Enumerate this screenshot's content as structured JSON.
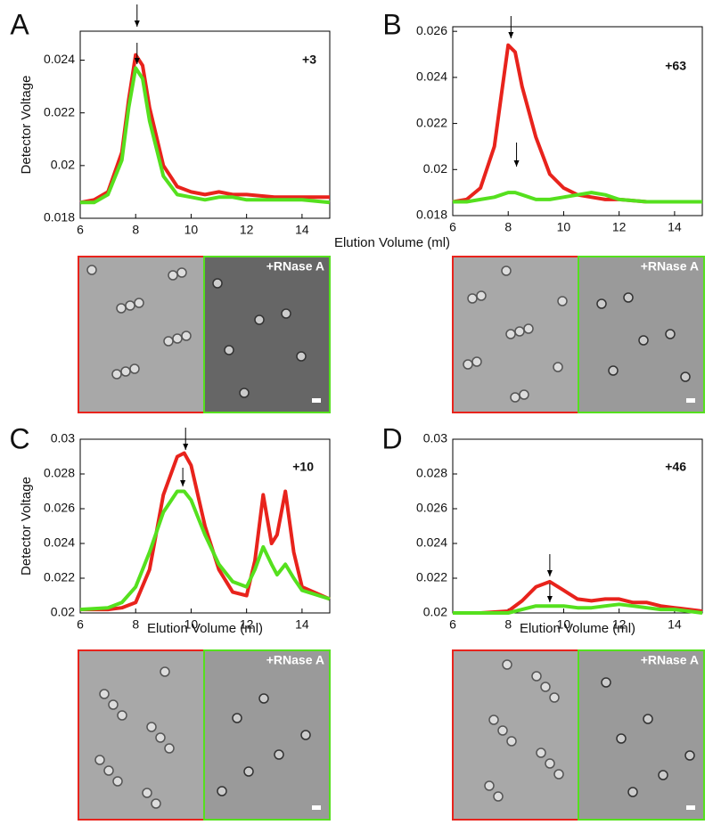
{
  "chart_data": [
    {
      "type": "line",
      "panel": "A",
      "annotation": "+3",
      "ylabel": "Detector Voltage",
      "xlabel": "Elution Volume (ml)",
      "image_label": "+RNase A",
      "xlim": [
        6,
        15
      ],
      "xticks": [
        6,
        8,
        10,
        12,
        14
      ],
      "ylim": [
        0.018,
        0.0251
      ],
      "yticks": [
        0.018,
        0.02,
        0.022,
        0.024
      ],
      "x": [
        6,
        6.5,
        7,
        7.5,
        7.75,
        8,
        8.25,
        8.5,
        9,
        9.5,
        10,
        10.5,
        11,
        11.5,
        12,
        13,
        14,
        15
      ],
      "series": [
        {
          "color": "#e8231c",
          "values": [
            0.0186,
            0.0187,
            0.019,
            0.0205,
            0.0225,
            0.0242,
            0.0238,
            0.0222,
            0.02,
            0.0192,
            0.019,
            0.0189,
            0.019,
            0.0189,
            0.0189,
            0.0188,
            0.0188,
            0.0188
          ]
        },
        {
          "color": "#55e01e",
          "values": [
            0.0186,
            0.0186,
            0.0189,
            0.0202,
            0.0222,
            0.0237,
            0.0233,
            0.0217,
            0.0196,
            0.0189,
            0.0188,
            0.0187,
            0.0188,
            0.0188,
            0.0187,
            0.0187,
            0.0187,
            0.0186
          ]
        }
      ]
    },
    {
      "type": "line",
      "panel": "B",
      "annotation": "+63",
      "image_label": "+RNase A",
      "xlim": [
        6,
        15
      ],
      "xticks": [
        6,
        8,
        10,
        12,
        14
      ],
      "ylim": [
        0.018,
        0.0262
      ],
      "yticks": [
        0.018,
        0.02,
        0.022,
        0.024,
        0.026
      ],
      "x": [
        6,
        6.5,
        7,
        7.5,
        7.75,
        8,
        8.25,
        8.5,
        9,
        9.5,
        10,
        10.5,
        11,
        11.5,
        12,
        13,
        14,
        15
      ],
      "series": [
        {
          "color": "#e8231c",
          "values": [
            0.0186,
            0.0187,
            0.0192,
            0.021,
            0.0232,
            0.0254,
            0.0251,
            0.0236,
            0.0214,
            0.0198,
            0.0192,
            0.0189,
            0.0188,
            0.0187,
            0.0187,
            0.0186,
            0.0186,
            0.0186
          ]
        },
        {
          "color": "#55e01e",
          "values": [
            0.0186,
            0.0186,
            0.0187,
            0.0188,
            0.0189,
            0.019,
            0.019,
            0.0189,
            0.0187,
            0.0187,
            0.0188,
            0.0189,
            0.019,
            0.0189,
            0.0187,
            0.0186,
            0.0186,
            0.0186
          ]
        }
      ]
    },
    {
      "type": "line",
      "panel": "C",
      "annotation": "+10",
      "ylabel": "Detector Voltage",
      "xlabel": "Elution Volume (ml)",
      "image_label": "+RNase A",
      "xlim": [
        6,
        15
      ],
      "xticks": [
        6,
        8,
        10,
        12,
        14
      ],
      "ylim": [
        0.02,
        0.03
      ],
      "yticks": [
        0.02,
        0.022,
        0.024,
        0.026,
        0.028,
        0.03
      ],
      "x": [
        6,
        7,
        7.5,
        8,
        8.5,
        9,
        9.5,
        9.75,
        10,
        10.5,
        11,
        11.5,
        12,
        12.3,
        12.6,
        12.9,
        13.1,
        13.4,
        13.7,
        14,
        15
      ],
      "series": [
        {
          "color": "#e8231c",
          "values": [
            0.0202,
            0.0202,
            0.0203,
            0.0206,
            0.0225,
            0.0268,
            0.029,
            0.0292,
            0.0285,
            0.025,
            0.0225,
            0.0212,
            0.021,
            0.023,
            0.0268,
            0.024,
            0.0245,
            0.027,
            0.0235,
            0.0215,
            0.0208
          ]
        },
        {
          "color": "#55e01e",
          "values": [
            0.0202,
            0.0203,
            0.0206,
            0.0215,
            0.0235,
            0.0258,
            0.027,
            0.027,
            0.0265,
            0.0245,
            0.0228,
            0.0218,
            0.0215,
            0.0225,
            0.0238,
            0.0228,
            0.0222,
            0.0228,
            0.022,
            0.0213,
            0.0208
          ]
        }
      ]
    },
    {
      "type": "line",
      "panel": "D",
      "annotation": "+46",
      "xlabel": "Elution Volume (ml)",
      "image_label": "+RNase A",
      "xlim": [
        6,
        15
      ],
      "xticks": [
        6,
        8,
        10,
        12,
        14
      ],
      "ylim": [
        0.02,
        0.03
      ],
      "yticks": [
        0.02,
        0.022,
        0.024,
        0.026,
        0.028,
        0.03
      ],
      "x": [
        6,
        7,
        8,
        8.5,
        9,
        9.5,
        10,
        10.5,
        11,
        11.5,
        12,
        12.5,
        13,
        13.5,
        14,
        15
      ],
      "series": [
        {
          "color": "#e8231c",
          "values": [
            0.02,
            0.02,
            0.0201,
            0.0207,
            0.0215,
            0.0218,
            0.0213,
            0.0208,
            0.0207,
            0.0208,
            0.0208,
            0.0206,
            0.0206,
            0.0204,
            0.0203,
            0.0201
          ]
        },
        {
          "color": "#55e01e",
          "values": [
            0.02,
            0.02,
            0.02,
            0.0202,
            0.0204,
            0.0204,
            0.0204,
            0.0203,
            0.0203,
            0.0204,
            0.0205,
            0.0204,
            0.0203,
            0.0202,
            0.0202,
            0.02
          ]
        }
      ]
    }
  ]
}
